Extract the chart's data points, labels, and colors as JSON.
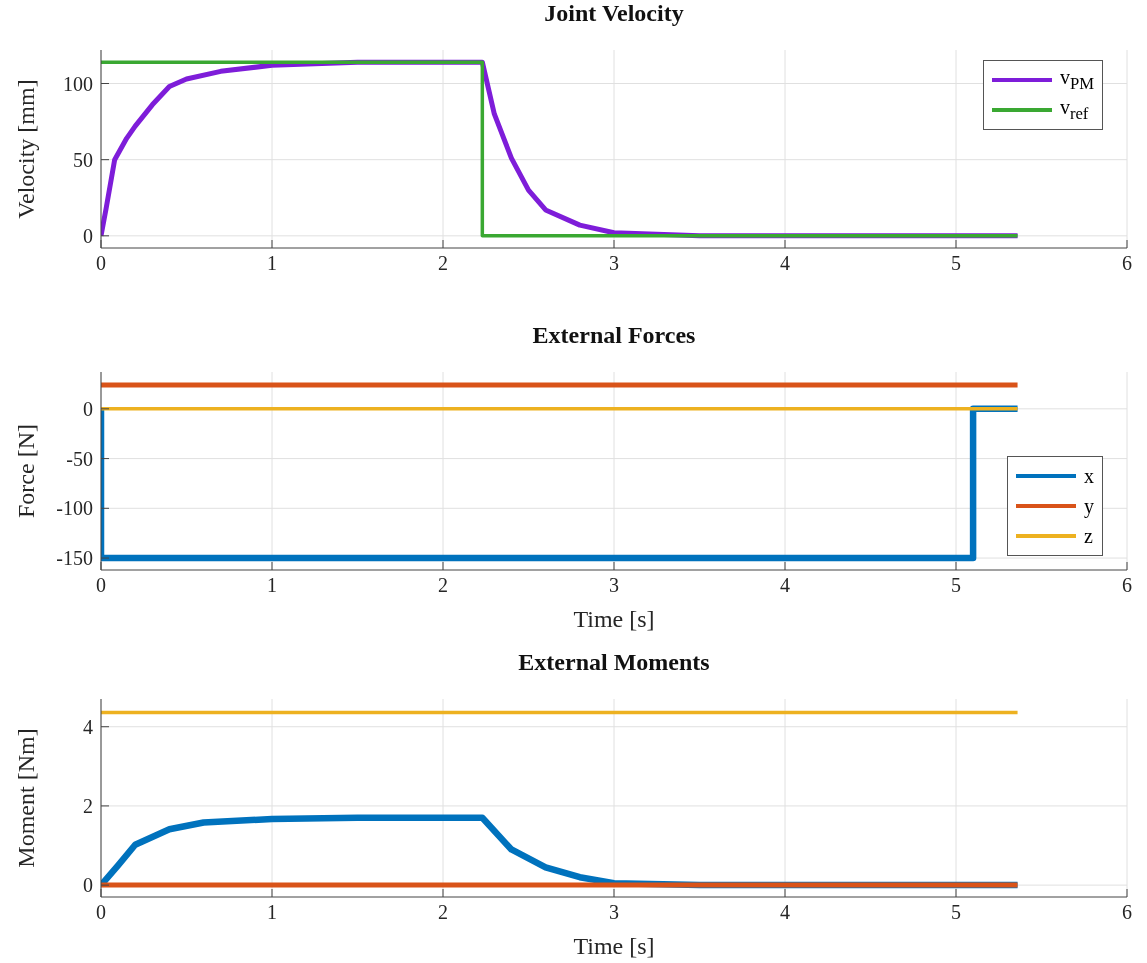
{
  "chart_data": [
    {
      "type": "line",
      "title": "Joint Velocity",
      "ylabel": "Velocity [mm]",
      "xlim": [
        0,
        6
      ],
      "xticks": [
        0,
        1,
        2,
        3,
        4,
        5,
        6
      ],
      "ylim": [
        -8,
        122
      ],
      "yticks": [
        0,
        50,
        100
      ],
      "grid": true,
      "legend": "top right",
      "series": [
        {
          "name": "v$_{PM}$",
          "color": "#7e1dd9",
          "x": [
            0,
            0.03,
            0.08,
            0.15,
            0.2,
            0.3,
            0.4,
            0.5,
            0.7,
            1,
            1.5,
            2.23,
            2.3,
            2.4,
            2.5,
            2.6,
            2.8,
            3,
            3.5,
            4,
            5.36
          ],
          "values": [
            0,
            18,
            50,
            64,
            72,
            86,
            98,
            103,
            108,
            112,
            114,
            114,
            80,
            51,
            30,
            17,
            7,
            2,
            0,
            0,
            0
          ]
        },
        {
          "name": "v$_{ref}$",
          "color": "#3aa832",
          "x": [
            0,
            2.23,
            2.23,
            5.36
          ],
          "values": [
            114,
            114,
            0,
            0
          ]
        }
      ]
    },
    {
      "type": "line",
      "title": "External Forces",
      "xlabel": "Time [s]",
      "ylabel": "Force [N]",
      "xlim": [
        0,
        6
      ],
      "xticks": [
        0,
        1,
        2,
        3,
        4,
        5,
        6
      ],
      "ylim": [
        -162,
        37
      ],
      "yticks": [
        -150,
        -100,
        -50,
        0
      ],
      "grid": true,
      "legend": "bottom right",
      "series": [
        {
          "name": "x",
          "color": "#0072bd",
          "x": [
            0,
            0,
            5.1,
            5.1,
            5.36
          ],
          "values": [
            0,
            -150,
            -150,
            0,
            0
          ]
        },
        {
          "name": "y",
          "color": "#d95319",
          "x": [
            0,
            5.36
          ],
          "values": [
            24,
            24
          ]
        },
        {
          "name": "z",
          "color": "#edb120",
          "x": [
            0,
            5.36
          ],
          "values": [
            0,
            0
          ]
        }
      ]
    },
    {
      "type": "line",
      "title": "External Moments",
      "xlabel": "Time [s]",
      "ylabel": "Moment [Nm]",
      "xlim": [
        0,
        6
      ],
      "xticks": [
        0,
        1,
        2,
        3,
        4,
        5,
        6
      ],
      "ylim": [
        -0.3,
        4.7
      ],
      "yticks": [
        0,
        2,
        4
      ],
      "grid": true,
      "series": [
        {
          "color": "#0072bd",
          "x": [
            0,
            0.1,
            0.2,
            0.4,
            0.6,
            1,
            1.5,
            2.23,
            2.4,
            2.6,
            2.8,
            3,
            3.5,
            5.36
          ],
          "values": [
            0,
            0.5,
            1.02,
            1.41,
            1.58,
            1.67,
            1.7,
            1.7,
            0.9,
            0.45,
            0.2,
            0.05,
            0,
            0
          ]
        },
        {
          "color": "#d95319",
          "x": [
            0,
            5.36
          ],
          "values": [
            0,
            0
          ]
        },
        {
          "color": "#edb120",
          "x": [
            0,
            5.36
          ],
          "values": [
            4.36,
            4.36
          ]
        }
      ]
    }
  ]
}
